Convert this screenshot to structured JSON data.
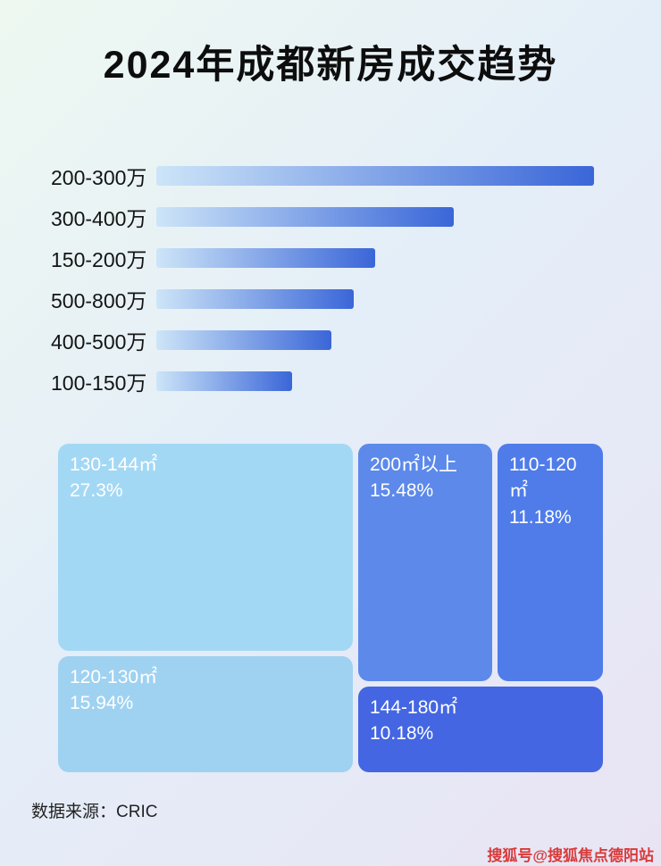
{
  "page": {
    "title": "2024年成都新房成交趋势",
    "source_label": "数据来源：CRIC",
    "watermark": "搜狐号@搜狐焦点德阳站",
    "background_colors": [
      "#eef8f1",
      "#e4eef8",
      "#e9e4f4"
    ]
  },
  "chart_data": [
    {
      "type": "bar",
      "orientation": "horizontal",
      "categories": [
        "200-300万",
        "300-400万",
        "150-200万",
        "500-800万",
        "400-500万",
        "100-150万"
      ],
      "values": [
        100,
        68,
        50,
        45,
        40,
        31
      ],
      "value_note": "bars carry no numeric labels; values are relative bar lengths with longest bar = 100",
      "bar_gradient": [
        "#cde5f8",
        "#3a66d8"
      ]
    },
    {
      "type": "treemap",
      "items": [
        {
          "label": "130-144㎡",
          "value": "27.3%",
          "color": "#a3d8f4"
        },
        {
          "label": "120-130㎡",
          "value": "15.94%",
          "color": "#9fd2f1"
        },
        {
          "label": "200㎡以上",
          "value": "15.48%",
          "color": "#5c89ea"
        },
        {
          "label": "110-120㎡",
          "value": "11.18%",
          "color": "#4f7ce9"
        },
        {
          "label": "144-180㎡",
          "value": "10.18%",
          "color": "#4466e2"
        }
      ]
    }
  ]
}
